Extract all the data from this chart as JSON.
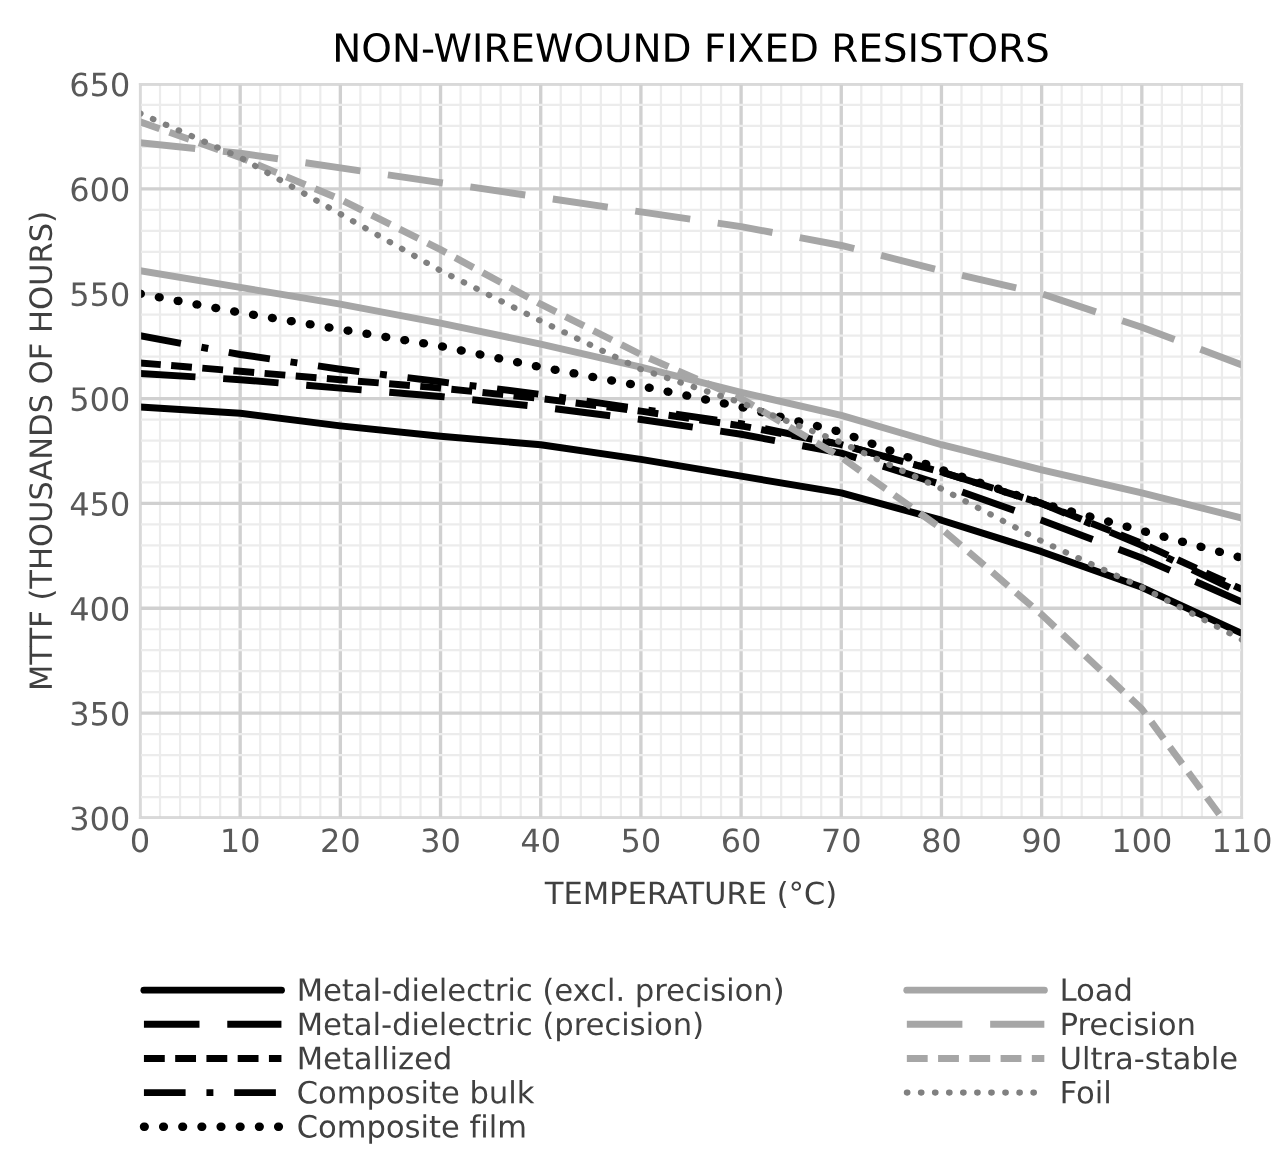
{
  "chart_data": {
    "type": "line",
    "title": "NON-WIREWOUND FIXED RESISTORS",
    "xlabel": "TEMPERATURE (°C)",
    "ylabel": "MTTF (THOUSANDS OF HOURS)",
    "x": [
      0,
      10,
      20,
      30,
      40,
      50,
      60,
      70,
      80,
      90,
      100,
      110
    ],
    "xlim": [
      0,
      110
    ],
    "xticks": [
      0,
      10,
      20,
      30,
      40,
      50,
      60,
      70,
      80,
      90,
      100,
      110
    ],
    "ylim": [
      300,
      650
    ],
    "yticks": [
      300,
      350,
      400,
      450,
      500,
      550,
      600,
      650
    ],
    "grid": true,
    "legend": "bottom",
    "marker": "none",
    "series": [
      {
        "name": "Metal-dielectric (excl. precision)",
        "color": "#000000",
        "line_style": "solid",
        "values": [
          496,
          493,
          487,
          482,
          478,
          471,
          463,
          455,
          442,
          427,
          410,
          388
        ]
      },
      {
        "name": "Metal-dielectric (precision)",
        "color": "#000000",
        "line_style": "longdash",
        "values": [
          512,
          509,
          505,
          501,
          496,
          490,
          483,
          474,
          459,
          442,
          424,
          403
        ]
      },
      {
        "name": "Metallized",
        "color": "#000000",
        "line_style": "dashed",
        "values": [
          517,
          513,
          509,
          505,
          500,
          494,
          487,
          478,
          465,
          450,
          431,
          409
        ]
      },
      {
        "name": "Composite bulk",
        "color": "#000000",
        "line_style": "dashdot",
        "values": [
          530,
          521,
          514,
          508,
          502,
          495,
          488,
          478,
          465,
          450,
          430,
          407
        ]
      },
      {
        "name": "Composite film",
        "color": "#000000",
        "line_style": "dotted",
        "values": [
          550,
          541,
          533,
          525,
          515,
          506,
          496,
          484,
          466,
          450,
          437,
          424
        ]
      },
      {
        "name": "Load",
        "color": "#a6a6a6",
        "line_style": "solid",
        "values": [
          561,
          553,
          545,
          536,
          526,
          515,
          503,
          492,
          478,
          466,
          455,
          443
        ]
      },
      {
        "name": "Precision",
        "color": "#a6a6a6",
        "line_style": "longdash",
        "values": [
          622,
          617,
          610,
          603,
          596,
          589,
          582,
          573,
          561,
          550,
          534,
          516
        ]
      },
      {
        "name": "Ultra-stable",
        "color": "#a6a6a6",
        "line_style": "dashed",
        "x": [
          0,
          10,
          20,
          30,
          40,
          50,
          60,
          70,
          80,
          90,
          100,
          108
        ],
        "values": [
          632,
          615,
          595,
          571,
          545,
          521,
          500,
          472,
          438,
          397,
          352,
          300
        ]
      },
      {
        "name": "Foil",
        "color": "#808080",
        "line_style": "dotted",
        "values": [
          636,
          615,
          588,
          561,
          537,
          514,
          498,
          479,
          457,
          432,
          410,
          385
        ]
      }
    ]
  }
}
